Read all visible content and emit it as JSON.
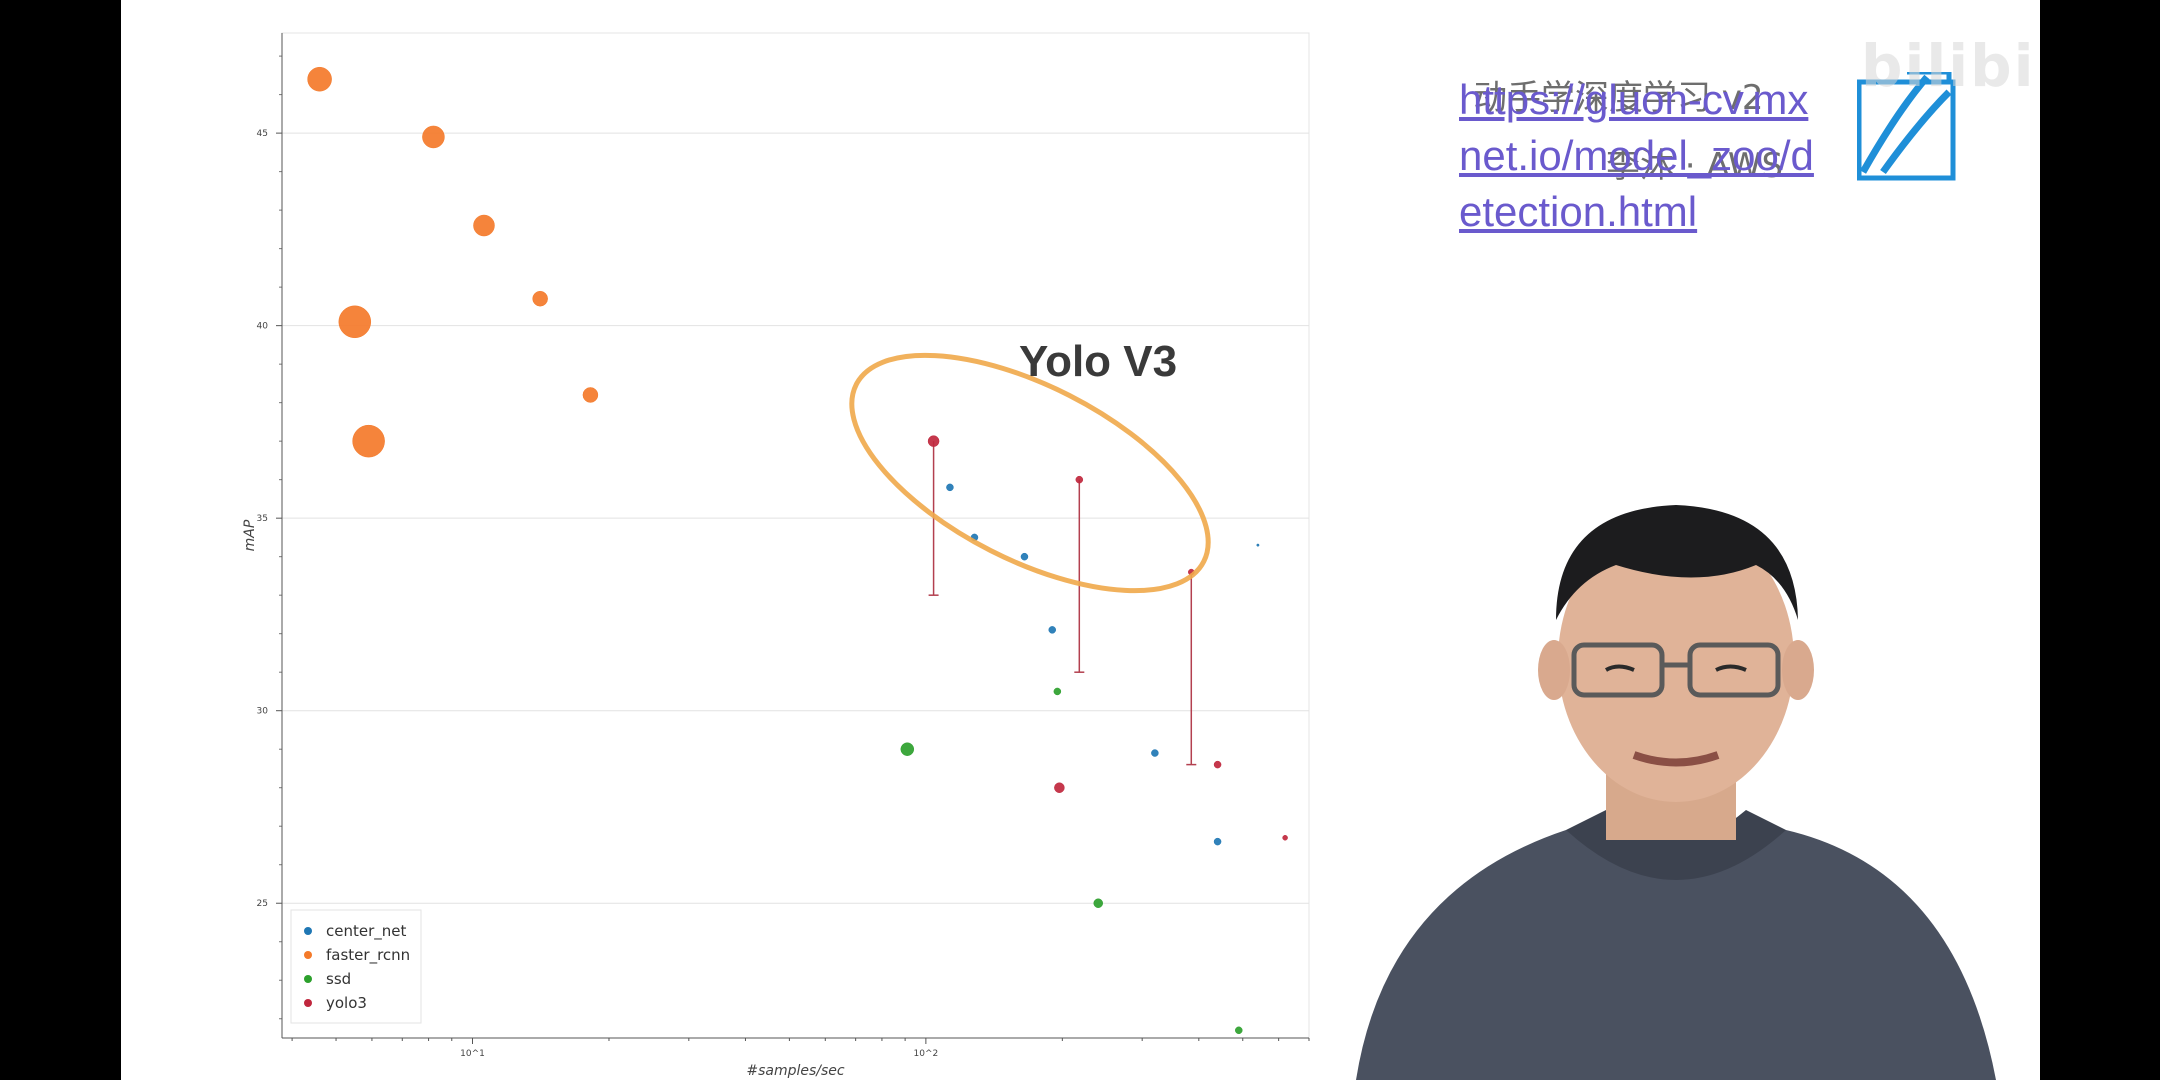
{
  "slide": {
    "link_text": "https://gluon-cv.mxnet.io/model_zoo/detection.html",
    "course_title": "动手学深度学习 v2",
    "course_author": "李沐 · AWS",
    "watermark": "bilibili"
  },
  "annotation": {
    "text": "Yolo V3",
    "color": "#f0a94a"
  },
  "chart_data": {
    "type": "scatter",
    "xlabel": "#samples/sec",
    "ylabel": "mAP",
    "x_scale": "log",
    "xlim": [
      3.8,
      700
    ],
    "ylim": [
      21.5,
      47.6
    ],
    "x_ticks": [
      {
        "value": 10,
        "label": "10^1"
      },
      {
        "value": 100,
        "label": "10^2"
      }
    ],
    "y_ticks": [
      25,
      30,
      35,
      40,
      45
    ],
    "grid": "horizontal",
    "legend_position": "bottom-left",
    "series": [
      {
        "name": "center_net",
        "color": "#1f77b4",
        "points": [
          {
            "x": 113,
            "y": 35.8,
            "r": 3.5
          },
          {
            "x": 128,
            "y": 34.5,
            "r": 3.5
          },
          {
            "x": 165,
            "y": 34.0,
            "r": 3.5
          },
          {
            "x": 190,
            "y": 32.1,
            "r": 3.5
          },
          {
            "x": 320,
            "y": 28.9,
            "r": 3.5
          },
          {
            "x": 440,
            "y": 26.6,
            "r": 3.5
          },
          {
            "x": 540,
            "y": 34.3,
            "r": 1.2
          }
        ]
      },
      {
        "name": "faster_rcnn",
        "color": "#f47a2a",
        "points": [
          {
            "x": 4.6,
            "y": 46.4,
            "r": 12
          },
          {
            "x": 8.2,
            "y": 44.9,
            "r": 11
          },
          {
            "x": 10.6,
            "y": 42.6,
            "r": 10.5
          },
          {
            "x": 14.1,
            "y": 40.7,
            "r": 7.5
          },
          {
            "x": 5.5,
            "y": 40.1,
            "r": 16
          },
          {
            "x": 18.2,
            "y": 38.2,
            "r": 7.5
          },
          {
            "x": 5.9,
            "y": 37.0,
            "r": 16
          }
        ]
      },
      {
        "name": "ssd",
        "color": "#2ca02c",
        "points": [
          {
            "x": 91,
            "y": 29.0,
            "r": 6.5
          },
          {
            "x": 195,
            "y": 30.5,
            "r": 3.5
          },
          {
            "x": 240,
            "y": 25.0,
            "r": 4.5
          },
          {
            "x": 490,
            "y": 21.7,
            "r": 3.5
          }
        ]
      },
      {
        "name": "yolo3",
        "color": "#c0273d",
        "points": [
          {
            "x": 104,
            "y": 37.0,
            "r": 5.5
          },
          {
            "x": 197,
            "y": 28.0,
            "r": 5
          },
          {
            "x": 218,
            "y": 36.0,
            "r": 3.5
          },
          {
            "x": 385,
            "y": 33.6,
            "r": 3
          },
          {
            "x": 440,
            "y": 28.6,
            "r": 3.5
          },
          {
            "x": 620,
            "y": 26.7,
            "r": 2.5
          }
        ]
      }
    ],
    "error_bars": [
      {
        "x": 104,
        "y_low": 33.0,
        "y_high": 37.0
      },
      {
        "x": 218,
        "y_low": 31.0,
        "y_high": 36.0
      },
      {
        "x": 385,
        "y_low": 28.6,
        "y_high": 33.6
      }
    ]
  }
}
